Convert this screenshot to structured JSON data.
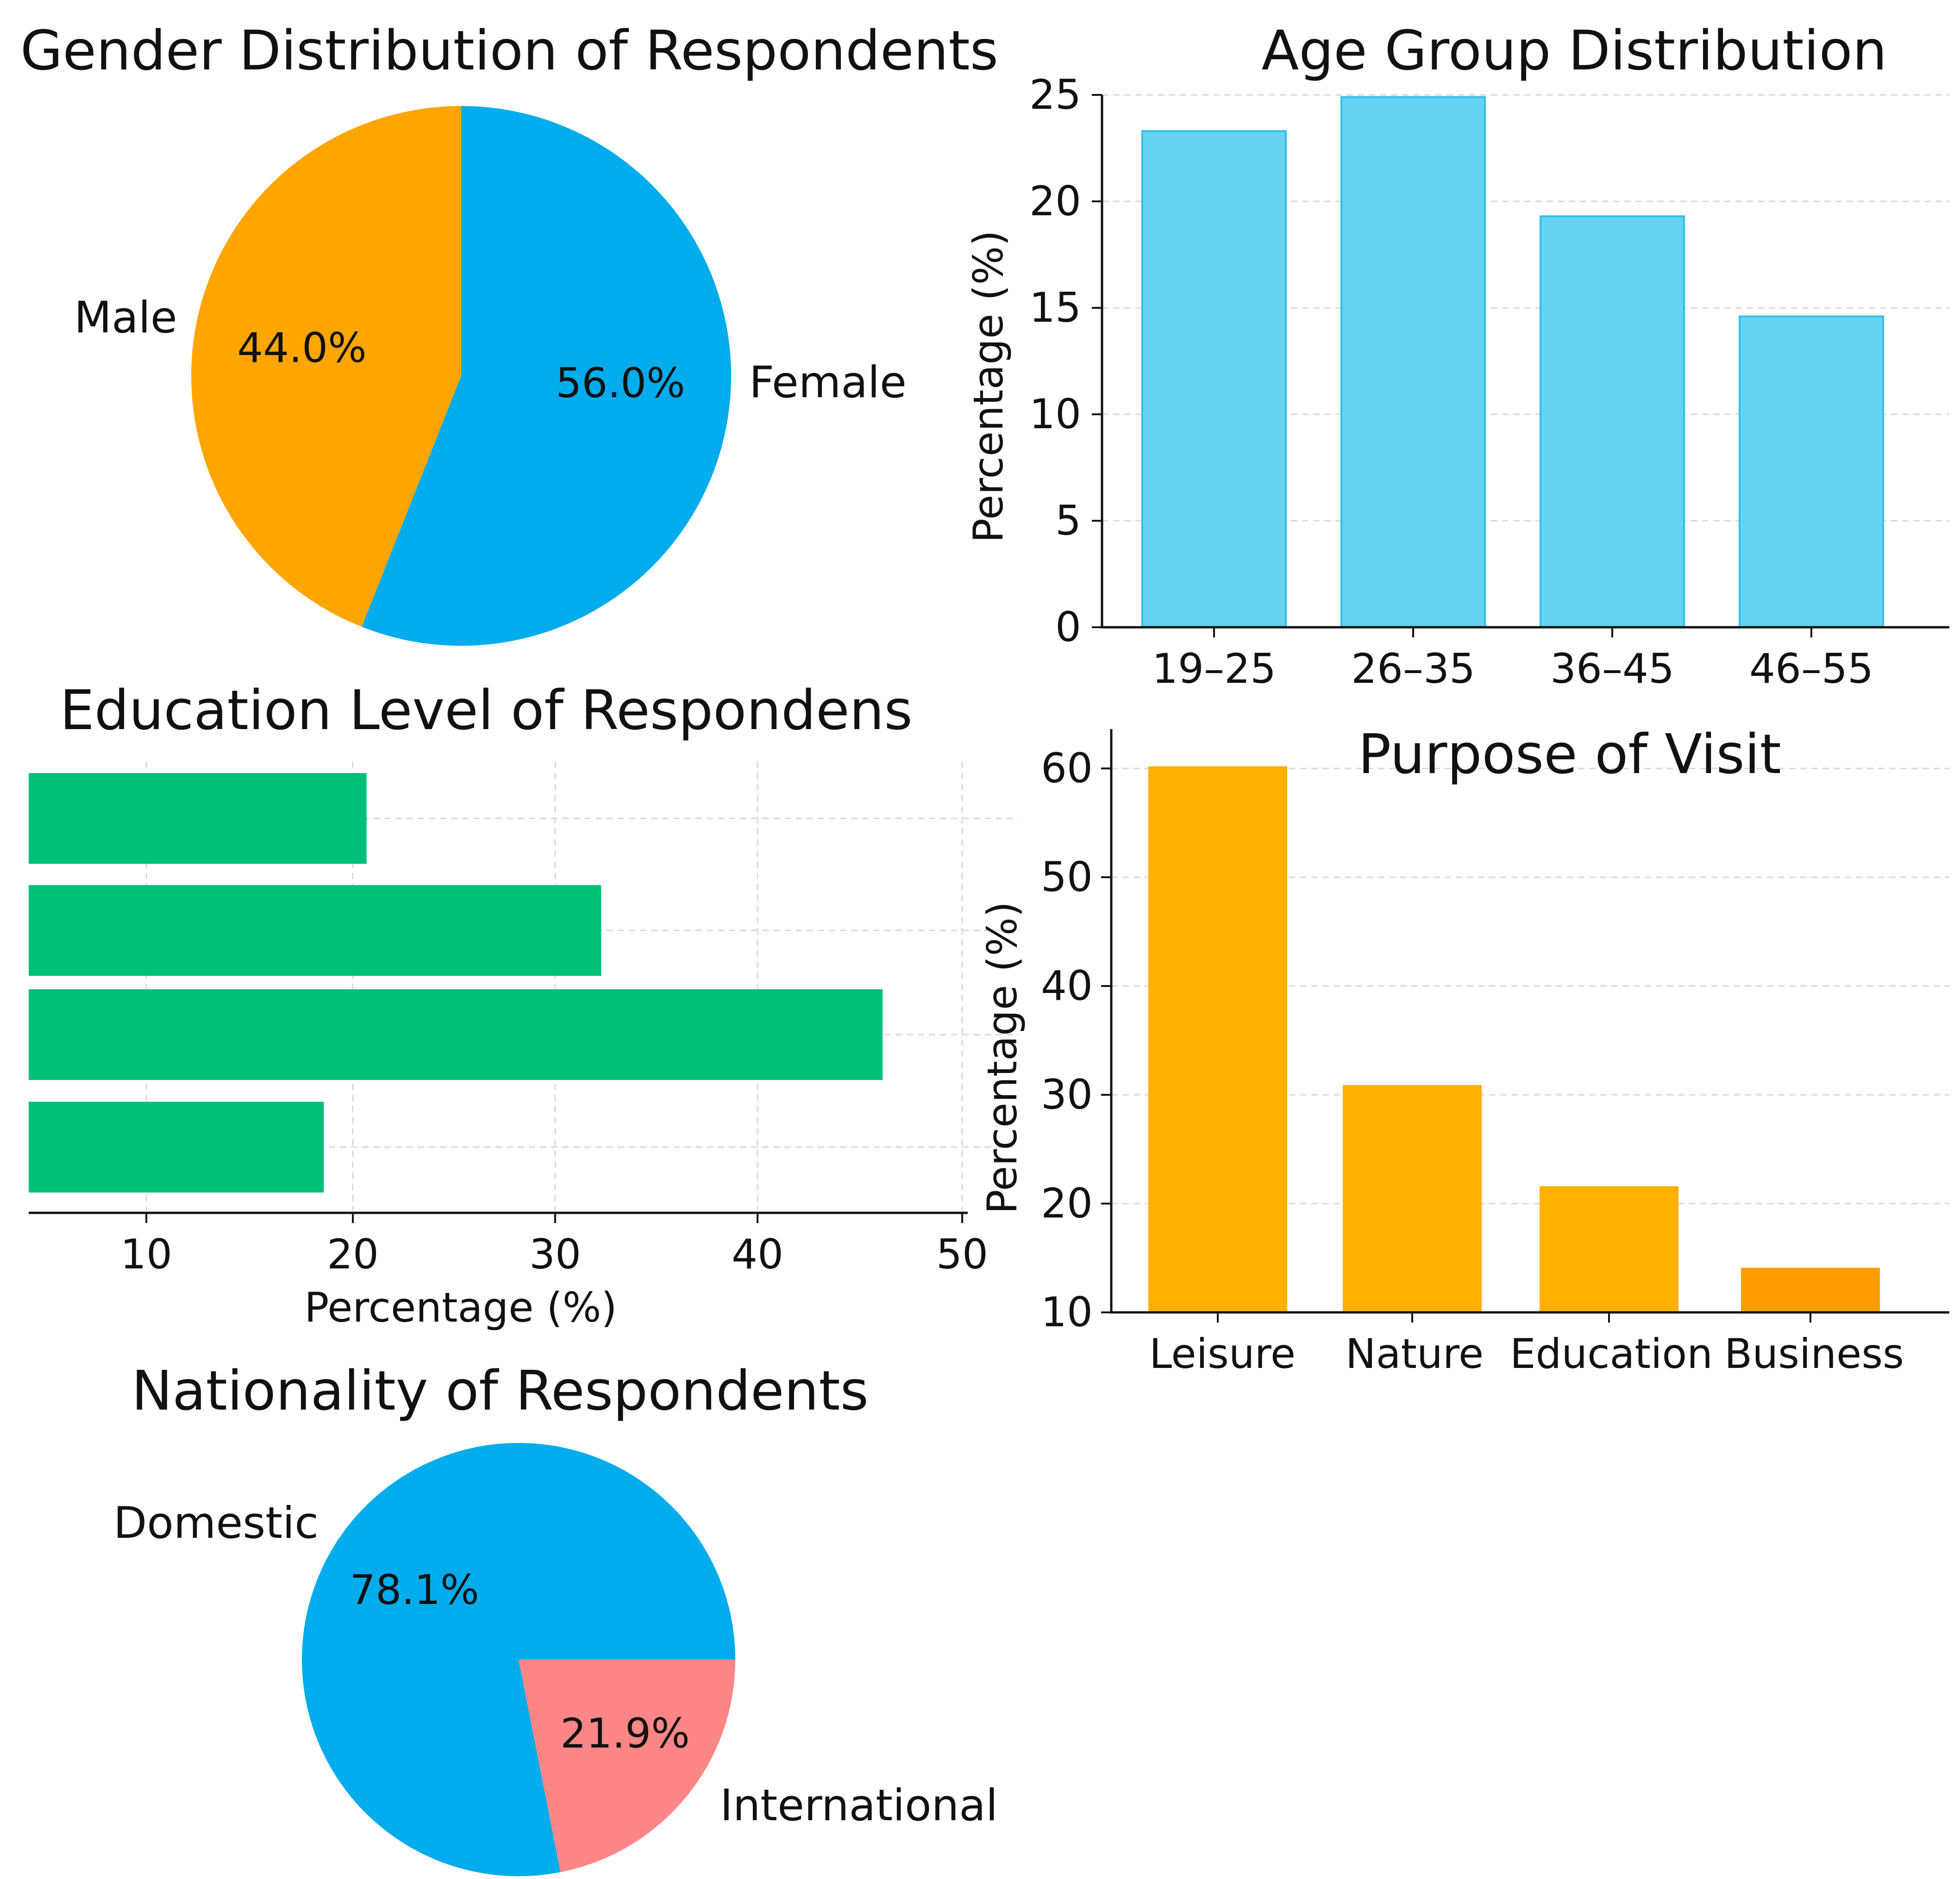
{
  "chart_data": [
    {
      "id": "gender",
      "type": "pie",
      "title": "Gender Distribution of Respondents",
      "labels": [
        "Male",
        "Female"
      ],
      "values": [
        44.0,
        56.0
      ],
      "pct_labels": [
        "44.0%",
        "56.0%"
      ],
      "colors": [
        "#ffa500",
        "#00acec"
      ]
    },
    {
      "id": "age",
      "type": "bar",
      "title": "Age Group Distribution",
      "categories": [
        "19–25",
        "26–35",
        "36–45",
        "46–55"
      ],
      "values": [
        23.3,
        24.9,
        19.3,
        14.6
      ],
      "ylabel": "Percentage (%)",
      "xlabel": "",
      "ylim": [
        0,
        25
      ],
      "yticks": [
        "0",
        "5",
        "10",
        "15",
        "20",
        "25"
      ],
      "grid": true,
      "color": "#66d3f0"
    },
    {
      "id": "education",
      "type": "bar",
      "orientation": "horizontal",
      "title": "Education Level of Respondens",
      "categories": [
        "",
        "",
        "",
        ""
      ],
      "values": [
        20.8,
        32.3,
        46.1,
        18.7
      ],
      "xlabel": "Percentage (%)",
      "ylabel": "",
      "xlim": [
        4.5,
        50
      ],
      "xticks": [
        "10",
        "20",
        "30",
        "40",
        "50"
      ],
      "grid": true,
      "color": "#00bf78"
    },
    {
      "id": "purpose",
      "type": "bar",
      "title": "Purpose of Visit",
      "categories": [
        "Leisure",
        "Nature",
        "Education",
        "Business"
      ],
      "values": [
        60.2,
        30.9,
        21.6,
        14.1
      ],
      "ylabel": "Percentage (%)",
      "xlabel": "",
      "ylim": [
        10,
        62
      ],
      "yticks": [
        "10",
        "20",
        "30",
        "40",
        "50",
        "60"
      ],
      "grid": true,
      "colors": [
        "#ffb000",
        "#ffb000",
        "#ffb000",
        "#ff9d00"
      ]
    },
    {
      "id": "nationality",
      "type": "pie",
      "title": "Nationality of Respondents",
      "labels": [
        "Domestic",
        "International"
      ],
      "values": [
        78.1,
        21.9
      ],
      "pct_labels": [
        "78.1%",
        "21.9%"
      ],
      "colors": [
        "#00acec",
        "#ff8686"
      ]
    }
  ]
}
